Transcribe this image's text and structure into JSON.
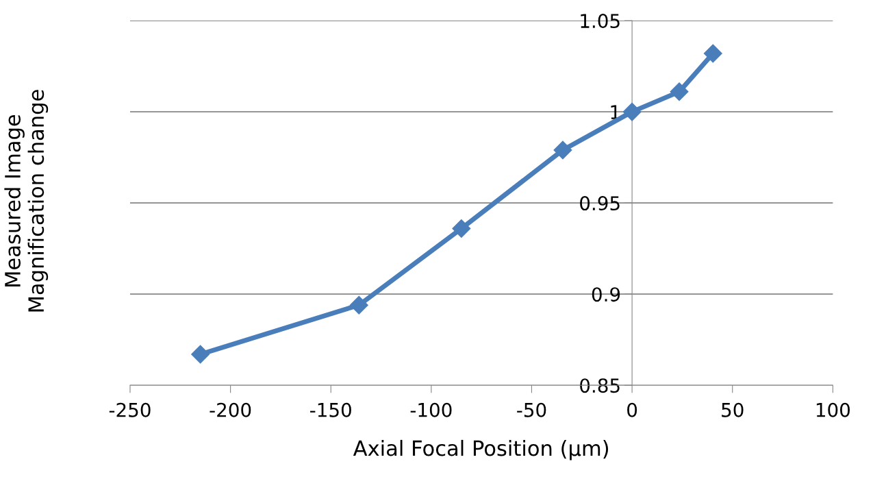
{
  "chart_data": {
    "type": "line",
    "xlabel": "Axial Focal Position (µm)",
    "ylabel": "Measured Image\nMagnification change",
    "x": [
      -215,
      -136,
      -85,
      -34.5,
      0,
      23.5,
      40.3
    ],
    "series": [
      {
        "color": "#4a7ebb",
        "values": [
          0.867,
          0.894,
          0.936,
          0.979,
          1.0,
          1.011,
          1.032
        ]
      }
    ],
    "xlim": [
      -250,
      100
    ],
    "xticks": [
      -250,
      -200,
      -150,
      -100,
      -50,
      0,
      50,
      100
    ],
    "ylim": [
      0.85,
      1.05
    ],
    "yticks": [
      0.85,
      0.9,
      0.95,
      1,
      1.05
    ],
    "grid": "y",
    "marker": "diamond",
    "line_style": "solid",
    "legend": false
  }
}
